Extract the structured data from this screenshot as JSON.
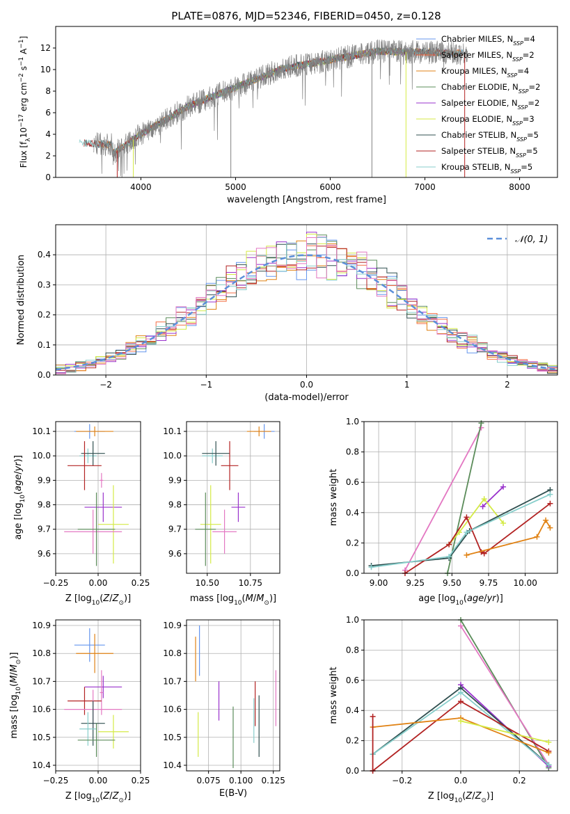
{
  "figure_title": "PLATE=0876, MJD=52346, FIBERID=0450, z=0.128",
  "chart_data": [
    {
      "id": "spectrum",
      "type": "line",
      "xlabel": "wavelength [Angstrom, rest frame]",
      "ylabel": "Flux [f_λ 10^-17 erg cm^-2 s^-1 A^-1]",
      "xlim": [
        3100,
        8400
      ],
      "ylim": [
        0,
        14
      ],
      "xticks": [
        4000,
        5000,
        6000,
        7000,
        8000
      ],
      "yticks": [
        0,
        2,
        4,
        6,
        8,
        10,
        12
      ],
      "legend_loc": "right",
      "series": [
        {
          "name": "Chabrier MILES, N_SSP=4",
          "color": "#6495ed",
          "x": [
            3550,
            7400
          ],
          "y": [
            3.2,
            11.5
          ]
        },
        {
          "name": "Salpeter MILES, N_SSP=2",
          "color": "#f46d43",
          "x": [
            3550,
            7400
          ],
          "y": [
            3.2,
            11.5
          ]
        },
        {
          "name": "Kroupa MILES, N_SSP=4",
          "color": "#e08214",
          "x": [
            3550,
            7400
          ],
          "y": [
            3.2,
            11.5
          ]
        },
        {
          "name": "Chabrier ELODIE, N_SSP=2",
          "color": "#5b8c5a",
          "x": [
            3900,
            6800
          ],
          "y": [
            1.8,
            11.8
          ]
        },
        {
          "name": "Salpeter ELODIE, N_SSP=2",
          "color": "#9932cc",
          "x": [
            3900,
            6800
          ],
          "y": [
            1.8,
            11.8
          ]
        },
        {
          "name": "Kroupa ELODIE, N_SSP=3",
          "color": "#d4ea45",
          "x": [
            3900,
            6800
          ],
          "y": [
            1.8,
            11.8
          ]
        },
        {
          "name": "Chabrier STELIB, N_SSP=5",
          "color": "#2f4f4f",
          "x": [
            3400,
            7400
          ],
          "y": [
            3.0,
            11.8
          ]
        },
        {
          "name": "Salpeter STELIB, N_SSP=5",
          "color": "#b22222",
          "x": [
            3400,
            7400
          ],
          "y": [
            3.0,
            11.8
          ]
        },
        {
          "name": "Kroupa STELIB, N_SSP=5",
          "color": "#87cecb",
          "x": [
            3350,
            7400
          ],
          "y": [
            2.8,
            11.8
          ]
        },
        {
          "name": "",
          "color": "#808080",
          "x": [
            3500,
            7450
          ],
          "y": [
            3.0,
            11.8
          ]
        }
      ]
    },
    {
      "id": "residuals",
      "type": "line",
      "xlabel": "(data-model)/error",
      "ylabel": "Normed distribution",
      "xlim": [
        -2.5,
        2.5
      ],
      "ylim": [
        0,
        0.5
      ],
      "xticks": [
        -2,
        -1,
        0,
        1,
        2
      ],
      "yticks": [
        0.0,
        0.1,
        0.2,
        0.3,
        0.4
      ],
      "legend_loc": "upper right",
      "series": [
        {
          "name": "N(0,1)",
          "color": "#5b8fd9",
          "style": "dashed",
          "function": "normal_pdf",
          "mu": 0,
          "sigma": 1
        }
      ],
      "histogram_colors": [
        "#6495ed",
        "#f46d43",
        "#e08214",
        "#5b8c5a",
        "#9932cc",
        "#d4ea45",
        "#2f4f4f",
        "#b22222",
        "#87cecb",
        "#e377c2"
      ]
    },
    {
      "id": "age_vs_Z",
      "type": "scatter",
      "xlabel": "Z [log10(Z/Z_sun)]",
      "ylabel": "age [log10(age/yr)]",
      "xlim": [
        -0.25,
        0.25
      ],
      "ylim": [
        9.52,
        10.14
      ],
      "xticks": [
        -0.25,
        0.0,
        0.25
      ],
      "yticks": [
        9.6,
        9.7,
        9.8,
        9.9,
        10.0,
        10.1
      ],
      "points": [
        {
          "color": "#6495ed",
          "x": -0.05,
          "y": 10.1,
          "xerr": 0.09,
          "yerr": 0.03
        },
        {
          "color": "#e08214",
          "x": -0.02,
          "y": 10.1,
          "xerr": 0.11,
          "yerr": 0.02
        },
        {
          "color": "#87cecb",
          "x": -0.06,
          "y": 10.0,
          "xerr": 0.05,
          "yerr": 0.03
        },
        {
          "color": "#2f4f4f",
          "x": -0.03,
          "y": 10.01,
          "xerr": 0.07,
          "yerr": 0.05
        },
        {
          "color": "#b22222",
          "x": -0.08,
          "y": 9.96,
          "xerr": 0.1,
          "yerr": 0.1
        },
        {
          "color": "#e377c2",
          "x": 0.02,
          "y": 9.9,
          "xerr": 0.01,
          "yerr": 0.03
        },
        {
          "color": "#9932cc",
          "x": 0.03,
          "y": 9.79,
          "xerr": 0.11,
          "yerr": 0.06
        },
        {
          "color": "#d4ea45",
          "x": 0.09,
          "y": 9.72,
          "xerr": 0.09,
          "yerr": 0.16
        },
        {
          "color": "#e377c2",
          "x": -0.03,
          "y": 9.69,
          "xerr": 0.17,
          "yerr": 0.09
        },
        {
          "color": "#5b8c5a",
          "x": -0.01,
          "y": 9.7,
          "xerr": 0.11,
          "yerr": 0.15
        }
      ]
    },
    {
      "id": "age_vs_mass",
      "type": "scatter",
      "xlabel": "mass [log10(M/M_sun)]",
      "ylabel": "",
      "xlim": [
        10.38,
        10.92
      ],
      "ylim": [
        9.52,
        10.14
      ],
      "xticks": [
        10.5,
        10.75
      ],
      "yticks": [
        9.6,
        9.7,
        9.8,
        9.9,
        10.0,
        10.1
      ],
      "points": [
        {
          "color": "#6495ed",
          "x": 10.83,
          "y": 10.1,
          "xerr": 0.06,
          "yerr": 0.03
        },
        {
          "color": "#e08214",
          "x": 10.8,
          "y": 10.1,
          "xerr": 0.07,
          "yerr": 0.02
        },
        {
          "color": "#87cecb",
          "x": 10.53,
          "y": 10.0,
          "xerr": 0.06,
          "yerr": 0.03
        },
        {
          "color": "#2f4f4f",
          "x": 10.55,
          "y": 10.01,
          "xerr": 0.08,
          "yerr": 0.05
        },
        {
          "color": "#b22222",
          "x": 10.63,
          "y": 9.96,
          "xerr": 0.05,
          "yerr": 0.1
        },
        {
          "color": "#9932cc",
          "x": 10.68,
          "y": 9.79,
          "xerr": 0.04,
          "yerr": 0.06
        },
        {
          "color": "#d4ea45",
          "x": 10.52,
          "y": 9.72,
          "xerr": 0.06,
          "yerr": 0.16
        },
        {
          "color": "#e377c2",
          "x": 10.6,
          "y": 9.69,
          "xerr": 0.07,
          "yerr": 0.09
        },
        {
          "color": "#5b8c5a",
          "x": 10.49,
          "y": 9.7,
          "xerr": 0.06,
          "yerr": 0.15
        }
      ]
    },
    {
      "id": "massweight_vs_age",
      "type": "line",
      "xlabel": "age [log10(age/yr)]",
      "ylabel": "mass weight",
      "xlim": [
        8.9,
        10.22
      ],
      "ylim": [
        0,
        1
      ],
      "xticks": [
        9.0,
        9.25,
        9.5,
        9.75,
        10.0
      ],
      "yticks": [
        0.0,
        0.2,
        0.4,
        0.6,
        0.8,
        1.0
      ],
      "series": [
        {
          "color": "#e377c2",
          "x": [
            9.18,
            9.7
          ],
          "y": [
            0.02,
            0.96
          ]
        },
        {
          "color": "#5b8c5a",
          "x": [
            9.47,
            9.7
          ],
          "y": [
            0.0,
            0.99
          ]
        },
        {
          "color": "#9932cc",
          "x": [
            9.71,
            9.85
          ],
          "y": [
            0.44,
            0.57
          ]
        },
        {
          "color": "#d4ea45",
          "x": [
            9.48,
            9.55,
            9.72,
            9.85
          ],
          "y": [
            0.19,
            0.27,
            0.49,
            0.33
          ]
        },
        {
          "color": "#2f4f4f",
          "x": [
            8.95,
            9.48,
            9.62,
            10.17
          ],
          "y": [
            0.05,
            0.1,
            0.28,
            0.55
          ]
        },
        {
          "color": "#b22222",
          "x": [
            9.18,
            9.48,
            9.6,
            9.7,
            9.72,
            10.17
          ],
          "y": [
            0.0,
            0.19,
            0.37,
            0.14,
            0.13,
            0.46
          ]
        },
        {
          "color": "#e08214",
          "x": [
            9.6,
            10.08,
            10.14,
            10.17
          ],
          "y": [
            0.12,
            0.24,
            0.35,
            0.3
          ]
        },
        {
          "color": "#87cecb",
          "x": [
            8.95,
            9.48,
            9.6,
            10.17
          ],
          "y": [
            0.04,
            0.11,
            0.27,
            0.52
          ]
        }
      ]
    },
    {
      "id": "mass_vs_Z",
      "type": "scatter",
      "xlabel": "Z [log10(Z/Z_sun)]",
      "ylabel": "mass [log10(M/M_sun)]",
      "xlim": [
        -0.25,
        0.25
      ],
      "ylim": [
        10.38,
        10.92
      ],
      "xticks": [
        -0.25,
        0.0,
        0.25
      ],
      "yticks": [
        10.4,
        10.5,
        10.6,
        10.7,
        10.8,
        10.9
      ],
      "points": [
        {
          "color": "#6495ed",
          "x": -0.05,
          "y": 10.83,
          "xerr": 0.09,
          "yerr": 0.06
        },
        {
          "color": "#e08214",
          "x": -0.02,
          "y": 10.8,
          "xerr": 0.11,
          "yerr": 0.07
        },
        {
          "color": "#9932cc",
          "x": 0.03,
          "y": 10.68,
          "xerr": 0.11,
          "yerr": 0.04
        },
        {
          "color": "#e377c2",
          "x": 0.02,
          "y": 10.66,
          "xerr": 0.01,
          "yerr": 0.08
        },
        {
          "color": "#b22222",
          "x": -0.08,
          "y": 10.63,
          "xerr": 0.1,
          "yerr": 0.05
        },
        {
          "color": "#e377c2",
          "x": -0.03,
          "y": 10.6,
          "xerr": 0.17,
          "yerr": 0.07
        },
        {
          "color": "#2f4f4f",
          "x": -0.03,
          "y": 10.55,
          "xerr": 0.07,
          "yerr": 0.08
        },
        {
          "color": "#87cecb",
          "x": -0.06,
          "y": 10.53,
          "xerr": 0.05,
          "yerr": 0.06
        },
        {
          "color": "#d4ea45",
          "x": 0.09,
          "y": 10.52,
          "xerr": 0.09,
          "yerr": 0.06
        },
        {
          "color": "#5b8c5a",
          "x": -0.01,
          "y": 10.49,
          "xerr": 0.11,
          "yerr": 0.06
        }
      ]
    },
    {
      "id": "mass_vs_EBV",
      "type": "scatter",
      "xlabel": "E(B-V)",
      "ylabel": "",
      "xlim": [
        0.058,
        0.13
      ],
      "ylim": [
        10.38,
        10.92
      ],
      "xticks": [
        0.075,
        0.1,
        0.125
      ],
      "yticks": [
        10.4,
        10.5,
        10.6,
        10.7,
        10.8,
        10.9
      ],
      "points": [
        {
          "color": "#6495ed",
          "x": 0.068,
          "y": 10.81,
          "yerr": 0.09
        },
        {
          "color": "#e08214",
          "x": 0.065,
          "y": 10.78,
          "yerr": 0.08
        },
        {
          "color": "#9932cc",
          "x": 0.083,
          "y": 10.63,
          "yerr": 0.07
        },
        {
          "color": "#e377c2",
          "x": 0.127,
          "y": 10.64,
          "yerr": 0.1
        },
        {
          "color": "#b22222",
          "x": 0.111,
          "y": 10.62,
          "yerr": 0.08
        },
        {
          "color": "#2f4f4f",
          "x": 0.114,
          "y": 10.54,
          "yerr": 0.11
        },
        {
          "color": "#87cecb",
          "x": 0.11,
          "y": 10.56,
          "yerr": 0.08
        },
        {
          "color": "#d4ea45",
          "x": 0.067,
          "y": 10.51,
          "yerr": 0.08
        },
        {
          "color": "#5b8c5a",
          "x": 0.094,
          "y": 10.5,
          "yerr": 0.11
        }
      ]
    },
    {
      "id": "massweight_vs_Z",
      "type": "line",
      "xlabel": "Z [log10(Z/Z_sun)]",
      "ylabel": "mass weight",
      "xlim": [
        -0.33,
        0.33
      ],
      "ylim": [
        0,
        1
      ],
      "xticks": [
        -0.2,
        0.0,
        0.2
      ],
      "yticks": [
        0.0,
        0.2,
        0.4,
        0.6,
        0.8,
        1.0
      ],
      "series": [
        {
          "color": "#5b8c5a",
          "x": [
            0.0,
            0.3
          ],
          "y": [
            1.0,
            0.02
          ]
        },
        {
          "color": "#e377c2",
          "x": [
            0.0,
            0.3
          ],
          "y": [
            0.96,
            0.04
          ]
        },
        {
          "color": "#9932cc",
          "x": [
            0.0,
            0.3
          ],
          "y": [
            0.57,
            0.03
          ]
        },
        {
          "color": "#2f4f4f",
          "x": [
            -0.3,
            0.0,
            0.3
          ],
          "y": [
            0.11,
            0.55,
            0.04
          ]
        },
        {
          "color": "#87cecb",
          "x": [
            -0.3,
            0.0,
            0.3
          ],
          "y": [
            0.11,
            0.52,
            0.04
          ]
        },
        {
          "color": "#b22222",
          "x": [
            -0.3,
            0.0,
            0.3
          ],
          "y": [
            0.0,
            0.46,
            0.13
          ]
        },
        {
          "color": "#e08214",
          "x": [
            -0.3,
            0.0,
            0.3
          ],
          "y": [
            0.29,
            0.35,
            0.12
          ]
        },
        {
          "color": "#d4ea45",
          "x": [
            0.0,
            0.3
          ],
          "y": [
            0.33,
            0.19
          ]
        },
        {
          "color": "#b22222",
          "x": [
            -0.3,
            -0.3
          ],
          "y": [
            0.36,
            0.0
          ]
        }
      ]
    }
  ]
}
